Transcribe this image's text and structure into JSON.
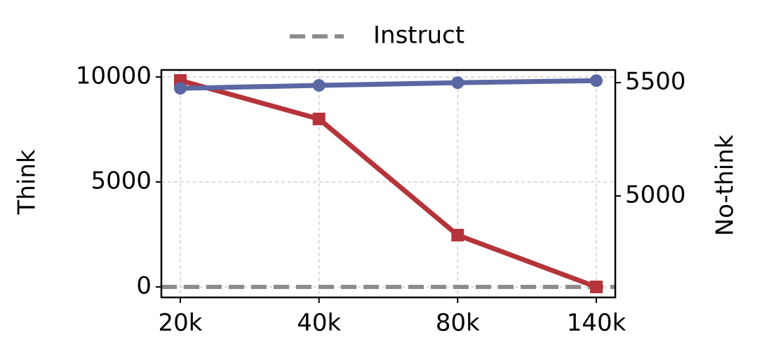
{
  "chart_data": {
    "type": "line",
    "categories": [
      "20k",
      "40k",
      "80k",
      "140k"
    ],
    "series": [
      {
        "color": "#b5343a",
        "marker": "square",
        "axis": "y",
        "values": [
          9833,
          8000,
          2467,
          0
        ]
      },
      {
        "color": "#5a67a3",
        "marker": "circle",
        "axis": "y2",
        "values": [
          5475,
          5488,
          5500,
          5509
        ]
      }
    ],
    "hlines": [
      {
        "name": "Instruct",
        "color": "#8c8c8c",
        "y": 0,
        "dashed": true
      }
    ],
    "ylabel": "Think",
    "y2label": "No-think",
    "ylim": [
      -500,
      10333
    ],
    "yticks": [
      0,
      5000,
      10000
    ],
    "y2lim": [
      4552,
      5556
    ],
    "y2ticks": [
      5000,
      5500
    ],
    "grid": true,
    "legend": "top"
  }
}
